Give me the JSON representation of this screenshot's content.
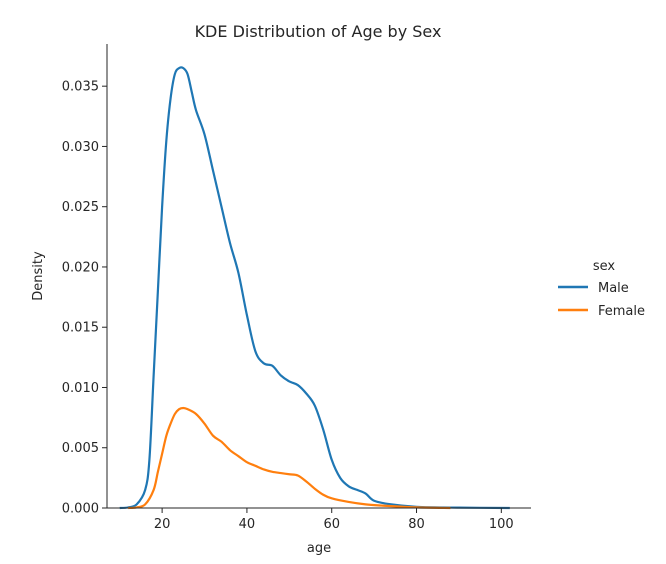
{
  "chart_data": {
    "type": "line",
    "title": "KDE Distribution of Age by Sex",
    "xlabel": "age",
    "ylabel": "Density",
    "xlim": [
      7,
      107
    ],
    "ylim": [
      0,
      0.0385
    ],
    "xticks": [
      20,
      40,
      60,
      80,
      100
    ],
    "xtick_labels": [
      "20",
      "40",
      "60",
      "80",
      "100"
    ],
    "yticks": [
      0,
      0.005,
      0.01,
      0.015,
      0.02,
      0.025,
      0.03,
      0.035
    ],
    "ytick_labels": [
      "0.000",
      "0.005",
      "0.010",
      "0.015",
      "0.020",
      "0.025",
      "0.030",
      "0.035"
    ],
    "grid": false,
    "legend": {
      "title": "sex",
      "position": "right"
    },
    "series": [
      {
        "name": "Male",
        "color": "#1f77b4",
        "points": [
          [
            10,
            0
          ],
          [
            12,
            5e-05
          ],
          [
            14,
            0.0003
          ],
          [
            16,
            0.0015
          ],
          [
            17,
            0.004
          ],
          [
            18,
            0.011
          ],
          [
            19,
            0.018
          ],
          [
            20,
            0.025
          ],
          [
            21,
            0.0305
          ],
          [
            22,
            0.034
          ],
          [
            23,
            0.036
          ],
          [
            24,
            0.0365
          ],
          [
            25,
            0.0365
          ],
          [
            26,
            0.036
          ],
          [
            27,
            0.0345
          ],
          [
            28,
            0.033
          ],
          [
            30,
            0.031
          ],
          [
            32,
            0.028
          ],
          [
            34,
            0.025
          ],
          [
            36,
            0.022
          ],
          [
            38,
            0.0195
          ],
          [
            40,
            0.016
          ],
          [
            42,
            0.013
          ],
          [
            44,
            0.012
          ],
          [
            46,
            0.0118
          ],
          [
            48,
            0.011
          ],
          [
            50,
            0.0105
          ],
          [
            52,
            0.0102
          ],
          [
            54,
            0.0095
          ],
          [
            56,
            0.0085
          ],
          [
            58,
            0.0065
          ],
          [
            60,
            0.004
          ],
          [
            62,
            0.0025
          ],
          [
            64,
            0.0018
          ],
          [
            66,
            0.0015
          ],
          [
            68,
            0.0012
          ],
          [
            70,
            0.0006
          ],
          [
            74,
            0.0003
          ],
          [
            80,
            0.0001
          ],
          [
            90,
            3e-05
          ],
          [
            102,
            0
          ]
        ]
      },
      {
        "name": "Female",
        "color": "#ff7f0e",
        "points": [
          [
            12,
            0
          ],
          [
            14,
            5e-05
          ],
          [
            16,
            0.0003
          ],
          [
            18,
            0.0015
          ],
          [
            19,
            0.003
          ],
          [
            20,
            0.0045
          ],
          [
            21,
            0.006
          ],
          [
            22,
            0.007
          ],
          [
            23,
            0.0078
          ],
          [
            24,
            0.0082
          ],
          [
            25,
            0.0083
          ],
          [
            26,
            0.0082
          ],
          [
            28,
            0.0078
          ],
          [
            30,
            0.007
          ],
          [
            32,
            0.006
          ],
          [
            34,
            0.0055
          ],
          [
            36,
            0.0048
          ],
          [
            38,
            0.0043
          ],
          [
            40,
            0.0038
          ],
          [
            42,
            0.0035
          ],
          [
            44,
            0.0032
          ],
          [
            46,
            0.003
          ],
          [
            48,
            0.0029
          ],
          [
            50,
            0.0028
          ],
          [
            52,
            0.0027
          ],
          [
            54,
            0.0022
          ],
          [
            56,
            0.0016
          ],
          [
            58,
            0.0011
          ],
          [
            60,
            0.0008
          ],
          [
            64,
            0.0005
          ],
          [
            68,
            0.0003
          ],
          [
            72,
            0.0002
          ],
          [
            80,
            5e-05
          ],
          [
            88,
            0
          ]
        ]
      }
    ]
  }
}
